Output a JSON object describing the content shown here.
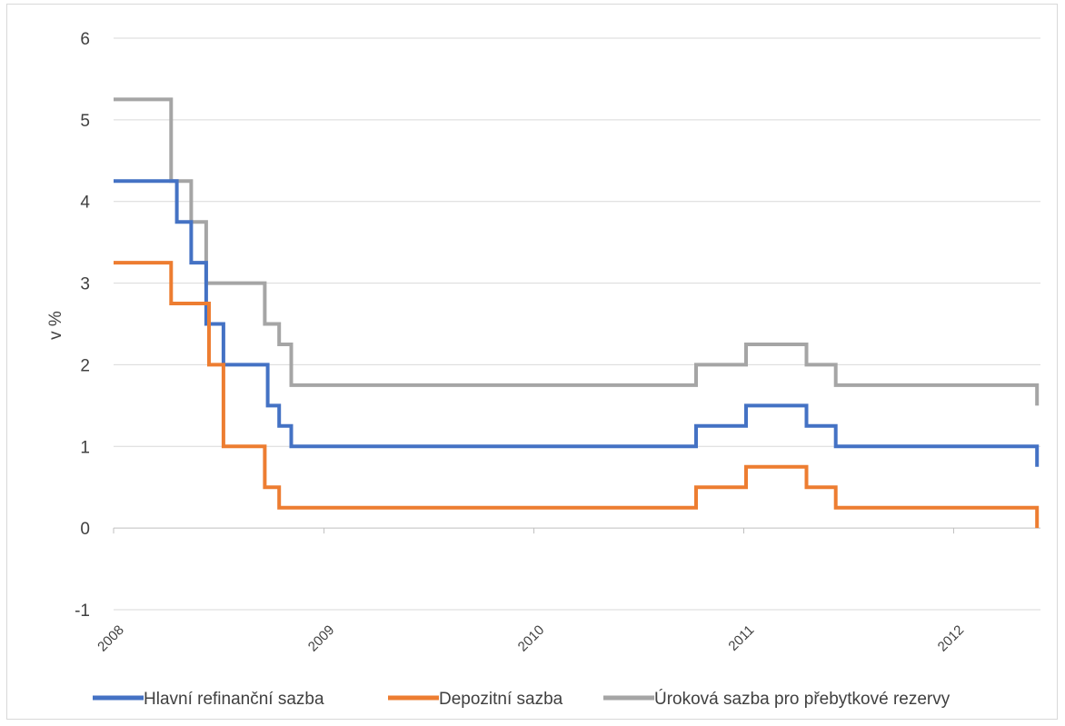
{
  "chart_data": {
    "type": "line",
    "step": true,
    "title": "",
    "xlabel": "",
    "ylabel": "v %",
    "xlim": [
      "2008-01-01",
      "2012-05-31"
    ],
    "ylim": [
      -1,
      6
    ],
    "yticks": [
      "-1",
      "0",
      "1",
      "2",
      "3",
      "4",
      "5",
      "6"
    ],
    "xticks": [
      {
        "date": "2008-01-01",
        "label": "2008"
      },
      {
        "date": "2009-01-01",
        "label": "2009"
      },
      {
        "date": "2010-01-01",
        "label": "2010"
      },
      {
        "date": "2011-01-01",
        "label": "2011"
      },
      {
        "date": "2012-01-01",
        "label": "2012"
      }
    ],
    "grid": true,
    "legend_position": "bottom",
    "series": [
      {
        "name": "Hlavní refinanční sazba",
        "color": "#4472c4",
        "points": [
          [
            "2008-01-01",
            4.25
          ],
          [
            "2008-04-20",
            3.75
          ],
          [
            "2008-05-15",
            3.25
          ],
          [
            "2008-06-10",
            2.5
          ],
          [
            "2008-07-10",
            2.0
          ],
          [
            "2008-09-25",
            1.5
          ],
          [
            "2008-10-15",
            1.25
          ],
          [
            "2008-11-05",
            1.0
          ],
          [
            "2010-10-10",
            1.25
          ],
          [
            "2011-01-05",
            1.5
          ],
          [
            "2011-04-20",
            1.25
          ],
          [
            "2011-06-10",
            1.0
          ],
          [
            "2012-05-25",
            0.75
          ]
        ]
      },
      {
        "name": "Depozitní sazba",
        "color": "#ed7d31",
        "points": [
          [
            "2008-01-01",
            3.25
          ],
          [
            "2008-04-10",
            2.75
          ],
          [
            "2008-06-15",
            2.0
          ],
          [
            "2008-07-10",
            1.0
          ],
          [
            "2008-09-20",
            0.5
          ],
          [
            "2008-10-15",
            0.25
          ],
          [
            "2010-10-10",
            0.5
          ],
          [
            "2011-01-05",
            0.75
          ],
          [
            "2011-04-20",
            0.5
          ],
          [
            "2011-06-10",
            0.25
          ],
          [
            "2012-05-25",
            0.0
          ]
        ]
      },
      {
        "name": "Úroková sazba pro přebytkové rezervy",
        "color": "#a5a5a5",
        "points": [
          [
            "2008-01-01",
            5.25
          ],
          [
            "2008-04-10",
            4.25
          ],
          [
            "2008-05-15",
            3.75
          ],
          [
            "2008-06-10",
            3.0
          ],
          [
            "2008-09-20",
            2.5
          ],
          [
            "2008-10-15",
            2.25
          ],
          [
            "2008-11-05",
            1.75
          ],
          [
            "2010-10-10",
            2.0
          ],
          [
            "2011-01-05",
            2.25
          ],
          [
            "2011-04-20",
            2.0
          ],
          [
            "2011-06-10",
            1.75
          ],
          [
            "2012-05-25",
            1.5
          ]
        ]
      }
    ]
  }
}
